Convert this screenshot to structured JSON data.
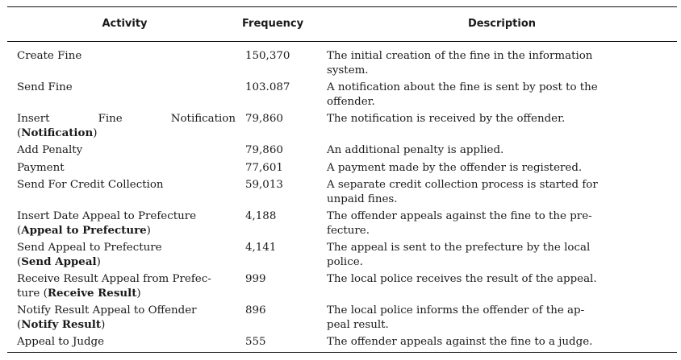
{
  "table": {
    "headers": {
      "activity": "Activity",
      "frequency": "Frequency",
      "description": "Description"
    },
    "rows": [
      {
        "activity": "Create Fine",
        "activity_alias": "",
        "frequency": "150,370",
        "description": "The initial creation of the fine in the information system."
      },
      {
        "activity": "Send Fine",
        "activity_alias": "",
        "frequency": "103.087",
        "description": "A notification about the fine is sent by post to the offender."
      },
      {
        "activity": "Insert Fine Notification",
        "activity_alias": "Notification",
        "frequency": "79,860",
        "description": "The notification is received by the offender."
      },
      {
        "activity": "Add Penalty",
        "activity_alias": "",
        "frequency": "79,860",
        "description": "An additional penalty is applied."
      },
      {
        "activity": "Payment",
        "activity_alias": "",
        "frequency": "77,601",
        "description": "A payment made by the offender is registered."
      },
      {
        "activity": "Send For Credit Collection",
        "activity_alias": "",
        "frequency": "59,013",
        "description": "A separate credit collection process is started for unpaid fines."
      },
      {
        "activity": "Insert Date Appeal to Prefecture",
        "activity_alias": "Appeal to Prefecture",
        "frequency": "4,188",
        "description": "The offender appeals against the fine to the pre-fecture."
      },
      {
        "activity": "Send Appeal to Prefecture",
        "activity_alias": "Send Appeal",
        "frequency": "4,141",
        "description": "The appeal is sent to the prefecture by the local police."
      },
      {
        "activity": "Receive Result Appeal from Prefec-ture",
        "activity_alias": "Receive Result",
        "frequency": "999",
        "description": "The local police receives the result of the appeal."
      },
      {
        "activity": "Notify Result Appeal to Offender",
        "activity_alias": "Notify Result",
        "frequency": "896",
        "description": "The local police informs the offender of the ap-peal result."
      },
      {
        "activity": "Appeal to Judge",
        "activity_alias": "",
        "frequency": "555",
        "description": "The offender appeals against the fine to a judge."
      }
    ]
  }
}
